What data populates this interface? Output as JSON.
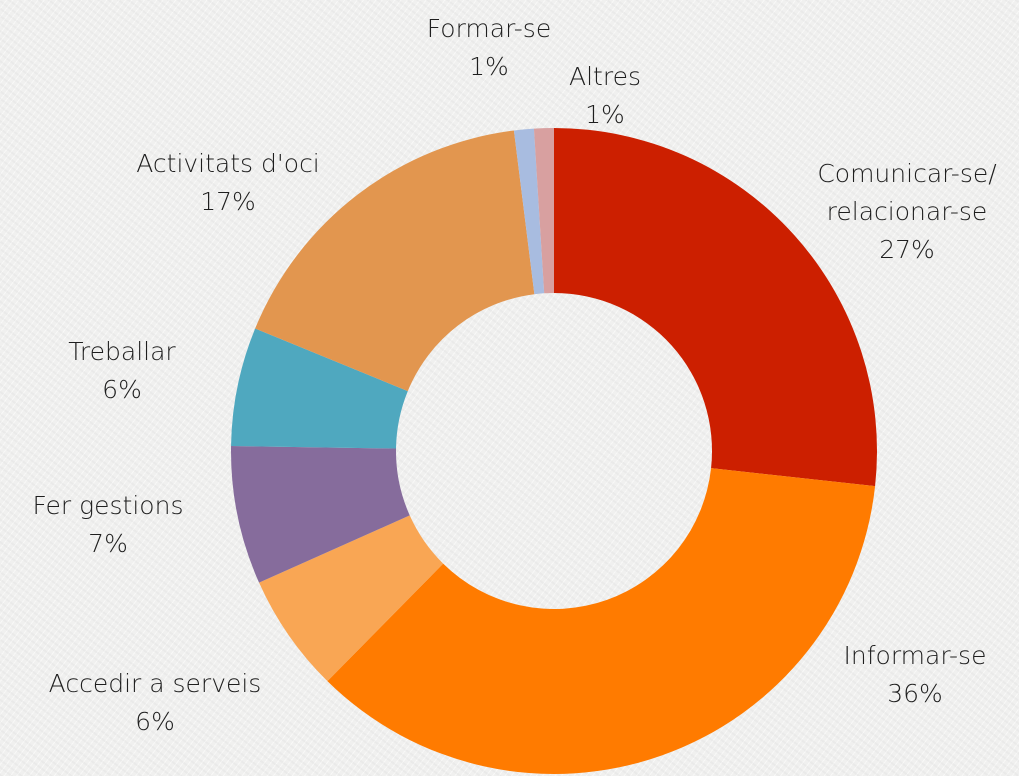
{
  "chart_data": {
    "type": "donut",
    "categories": [
      "Comunicar-se/\nrelacionar-se",
      "Informar-se",
      "Accedir a serveis",
      "Fer gestions",
      "Treballar",
      "Activitats d'oci",
      "Formar-se",
      "Altres"
    ],
    "values": [
      27,
      36,
      6,
      7,
      6,
      17,
      1,
      1
    ],
    "value_labels": [
      "27%",
      "36%",
      "6%",
      "7%",
      "6%",
      "17%",
      "1%",
      "1%"
    ],
    "colors": [
      "#cc1f00",
      "#ff7b00",
      "#f9a654",
      "#866c9c",
      "#4fa8bf",
      "#e2964f",
      "#a8bce0",
      "#d8a0a0"
    ]
  }
}
